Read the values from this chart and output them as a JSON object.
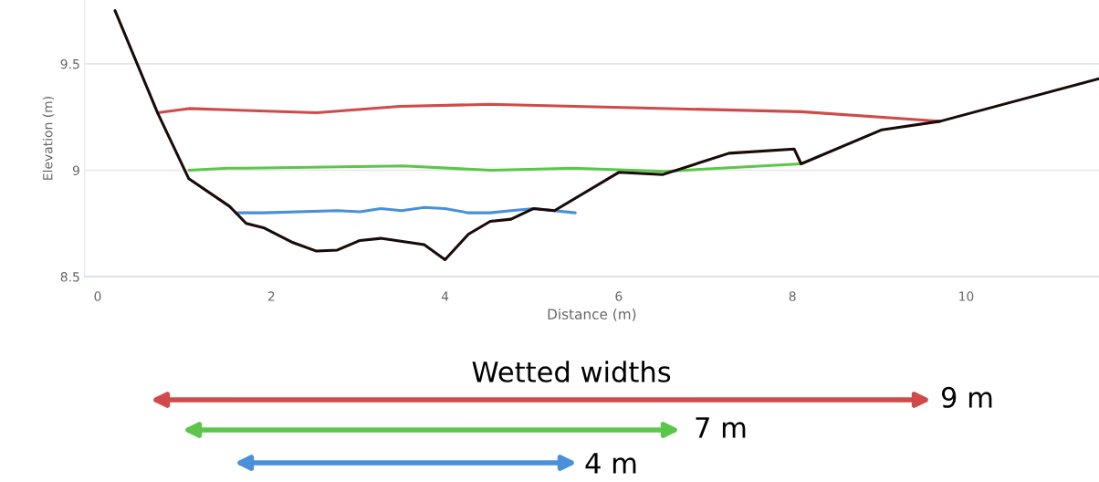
{
  "chart_data": {
    "type": "line",
    "xlabel": "Distance (m)",
    "ylabel": "Elevation (m)",
    "xlim": [
      -0.15,
      11.53
    ],
    "ylim": [
      8.5,
      9.8
    ],
    "xticks": [
      0,
      2,
      4,
      6,
      8,
      10
    ],
    "yticks": [
      8.5,
      9,
      9.5
    ],
    "grid": "y",
    "marker": "none",
    "line_style": "solid",
    "series": [
      {
        "color": "#d04a4a",
        "x": [
          0.69,
          1.05,
          2.52,
          3.48,
          4.52,
          8.1,
          9.7
        ],
        "values": [
          9.27,
          9.29,
          9.27,
          9.3,
          9.31,
          9.275,
          9.23
        ]
      },
      {
        "color": "#5cc64a",
        "x": [
          1.05,
          1.5,
          1.71,
          3.52,
          4.53,
          5.48,
          6.53,
          8.1
        ],
        "values": [
          9.0,
          9.01,
          9.01,
          9.02,
          9.0,
          9.01,
          8.995,
          9.03
        ]
      },
      {
        "color": "#4a90d9",
        "x": [
          1.59,
          1.91,
          2.76,
          3.02,
          3.26,
          3.5,
          3.76,
          4.0,
          4.27,
          4.52,
          4.76,
          5.02,
          5.5
        ],
        "values": [
          8.8,
          8.8,
          8.81,
          8.805,
          8.82,
          8.81,
          8.825,
          8.82,
          8.8,
          8.8,
          8.81,
          8.82,
          8.8
        ]
      },
      {
        "color": "#1a0a0a",
        "x": [
          0.2,
          0.69,
          1.05,
          1.52,
          1.71,
          1.91,
          2.25,
          2.52,
          2.76,
          3.02,
          3.26,
          3.76,
          4.0,
          4.27,
          4.52,
          4.76,
          5.02,
          5.26,
          6.0,
          6.51,
          7.27,
          8.02,
          8.1,
          9.03,
          9.7,
          11.53
        ],
        "values": [
          9.75,
          9.27,
          8.96,
          8.83,
          8.75,
          8.73,
          8.66,
          8.62,
          8.625,
          8.67,
          8.68,
          8.65,
          8.58,
          8.7,
          8.76,
          8.77,
          8.82,
          8.81,
          8.99,
          8.98,
          9.08,
          9.1,
          9.03,
          9.19,
          9.23,
          9.43
        ]
      }
    ],
    "annotations": [
      "Wetted widths",
      "9 m",
      "7 m",
      "4 m"
    ]
  }
}
